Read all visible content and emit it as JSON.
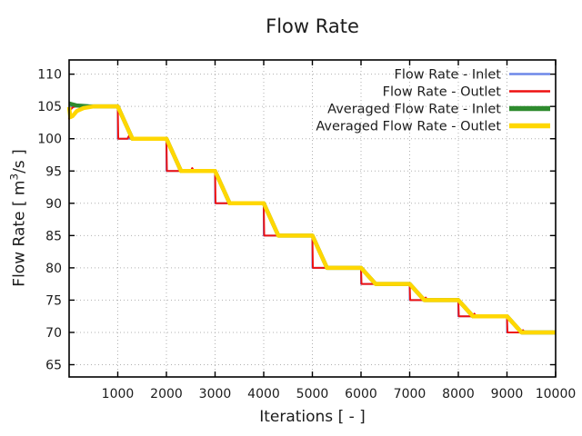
{
  "page": {
    "background": "#ffffff"
  },
  "chart_data": {
    "type": "line",
    "title": "Flow Rate",
    "xlabel": "Iterations [ - ]",
    "ylabel": "Flow Rate [ m³/s ]",
    "ylabel_parts": {
      "prefix": "Flow Rate [ m",
      "sup": "3",
      "suffix": "/s ]"
    },
    "xlim": [
      0,
      10000
    ],
    "ylim": [
      63.1,
      112.2
    ],
    "xticks": [
      1000,
      2000,
      3000,
      4000,
      5000,
      6000,
      7000,
      8000,
      9000,
      10000
    ],
    "yticks": [
      65,
      70,
      75,
      80,
      85,
      90,
      95,
      100,
      105,
      110
    ],
    "grid": true,
    "grid_color": "#b0b0b0",
    "axis_color": "#000000",
    "legend_position": "top-right-inside",
    "series": [
      {
        "name": "Flow Rate - Inlet",
        "color": "#6d87e8",
        "width": 2,
        "points": [
          [
            0,
            105
          ],
          [
            1000,
            105
          ],
          [
            1000,
            100
          ],
          [
            2000,
            100
          ],
          [
            2000,
            95
          ],
          [
            3000,
            95
          ],
          [
            3000,
            90
          ],
          [
            4000,
            90
          ],
          [
            4000,
            85
          ],
          [
            5000,
            85
          ],
          [
            5000,
            80
          ],
          [
            6000,
            80
          ],
          [
            6000,
            77.5
          ],
          [
            7000,
            77.5
          ],
          [
            7000,
            75
          ],
          [
            8000,
            75
          ],
          [
            8000,
            72.5
          ],
          [
            9000,
            72.5
          ],
          [
            9000,
            70
          ],
          [
            10000,
            70
          ]
        ]
      },
      {
        "name": "Flow Rate - Outlet",
        "color": "#ee1111",
        "width": 2,
        "points": [
          [
            0,
            103.0
          ],
          [
            30,
            104.5
          ],
          [
            80,
            104.9
          ],
          [
            150,
            105
          ],
          [
            1000,
            105
          ],
          [
            1010,
            100
          ],
          [
            1200,
            100
          ],
          [
            1230,
            100.45
          ],
          [
            1270,
            100
          ],
          [
            2000,
            100
          ],
          [
            2010,
            95
          ],
          [
            2250,
            95
          ],
          [
            2280,
            95.45
          ],
          [
            2320,
            95
          ],
          [
            2500,
            95
          ],
          [
            2530,
            95.45
          ],
          [
            2570,
            95
          ],
          [
            3000,
            95
          ],
          [
            3010,
            90
          ],
          [
            4000,
            90
          ],
          [
            4010,
            85
          ],
          [
            5000,
            85
          ],
          [
            5010,
            80
          ],
          [
            6000,
            80
          ],
          [
            6010,
            77.5
          ],
          [
            7000,
            77.5
          ],
          [
            7010,
            75
          ],
          [
            7300,
            75
          ],
          [
            7330,
            75.4
          ],
          [
            7370,
            75
          ],
          [
            8000,
            75
          ],
          [
            8010,
            72.5
          ],
          [
            8300,
            72.5
          ],
          [
            8330,
            72.9
          ],
          [
            8370,
            72.5
          ],
          [
            9000,
            72.5
          ],
          [
            9010,
            70
          ],
          [
            9300,
            70
          ],
          [
            9330,
            70.35
          ],
          [
            9370,
            70
          ],
          [
            10000,
            70
          ]
        ]
      },
      {
        "name": "Averaged Flow Rate - Inlet",
        "color": "#2e8b2e",
        "width": 4.5,
        "points": [
          [
            0,
            105.45
          ],
          [
            150,
            105.15
          ],
          [
            400,
            105.02
          ],
          [
            1000,
            105
          ],
          [
            1300,
            100
          ],
          [
            2000,
            100
          ],
          [
            2300,
            95
          ],
          [
            3000,
            95
          ],
          [
            3300,
            90
          ],
          [
            4000,
            90
          ],
          [
            4300,
            85
          ],
          [
            5000,
            85
          ],
          [
            5300,
            80
          ],
          [
            6000,
            80
          ],
          [
            6300,
            77.5
          ],
          [
            7000,
            77.5
          ],
          [
            7300,
            75
          ],
          [
            8000,
            75
          ],
          [
            8300,
            72.5
          ],
          [
            9000,
            72.5
          ],
          [
            9300,
            70
          ],
          [
            10000,
            70
          ]
        ]
      },
      {
        "name": "Averaged Flow Rate - Outlet",
        "color": "#ffd700",
        "width": 4.5,
        "points": [
          [
            0,
            104.9
          ],
          [
            25,
            103.35
          ],
          [
            70,
            103.5
          ],
          [
            160,
            104.3
          ],
          [
            300,
            104.75
          ],
          [
            500,
            105
          ],
          [
            1000,
            105
          ],
          [
            1300,
            100
          ],
          [
            2000,
            100
          ],
          [
            2300,
            95
          ],
          [
            3000,
            95
          ],
          [
            3300,
            90
          ],
          [
            4000,
            90
          ],
          [
            4300,
            85
          ],
          [
            5000,
            85
          ],
          [
            5300,
            80
          ],
          [
            6000,
            80
          ],
          [
            6300,
            77.5
          ],
          [
            7000,
            77.5
          ],
          [
            7300,
            75
          ],
          [
            8000,
            75
          ],
          [
            8300,
            72.5
          ],
          [
            9000,
            72.5
          ],
          [
            9300,
            70
          ],
          [
            10000,
            70
          ]
        ]
      }
    ]
  }
}
